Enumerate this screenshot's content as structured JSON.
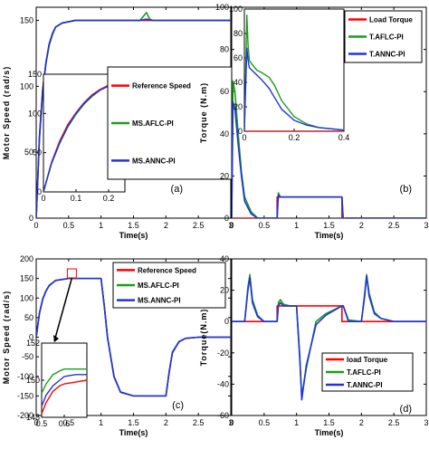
{
  "colors": {
    "reference": "#ff0000",
    "aflc": "#1a9e1a",
    "annc": "#2233dd",
    "axis": "#000000"
  },
  "chart_data": [
    {
      "type": "line",
      "panel_tag": "(a)",
      "xlabel": "Time(s)",
      "ylabel": "Motor Speed (rad/s)",
      "xlim": [
        0,
        3
      ],
      "ylim": [
        0,
        160
      ],
      "xticks": [
        0,
        0.5,
        1,
        1.5,
        2,
        2.5,
        3
      ],
      "xtick_labels": [
        "0",
        "0.5",
        "1",
        "1.5",
        "2",
        "2.5",
        "3"
      ],
      "yticks": [
        0,
        50,
        100,
        150
      ],
      "ytick_labels": [
        "0",
        "50",
        "100",
        "150"
      ],
      "legend_position": "center-right",
      "series": [
        {
          "name": "Reference Speed",
          "color_key": "reference",
          "x": [
            0,
            0.05,
            0.1,
            0.15,
            0.2,
            0.25,
            0.3,
            0.4,
            0.6,
            1,
            1.6,
            1.7,
            1.8,
            2,
            3
          ],
          "y": [
            0,
            62,
            98,
            118,
            132,
            140,
            145,
            148,
            150,
            150,
            150,
            150,
            150,
            150,
            150
          ]
        },
        {
          "name": "MS.AFLC-PI",
          "color_key": "aflc",
          "x": [
            0,
            0.05,
            0.1,
            0.15,
            0.2,
            0.25,
            0.3,
            0.4,
            0.6,
            1,
            1.6,
            1.7,
            1.75,
            1.8,
            2,
            3
          ],
          "y": [
            0,
            60,
            96,
            117,
            131,
            139,
            145,
            148,
            150,
            150,
            150,
            156,
            151,
            150,
            150,
            150
          ]
        },
        {
          "name": "MS.ANNC-PI",
          "color_key": "annc",
          "x": [
            0,
            0.05,
            0.1,
            0.15,
            0.2,
            0.25,
            0.3,
            0.4,
            0.6,
            1,
            1.6,
            1.7,
            1.8,
            2,
            3
          ],
          "y": [
            0,
            61,
            97,
            118,
            132,
            140,
            145,
            148,
            150,
            150,
            150,
            151,
            150,
            150,
            150
          ]
        }
      ],
      "inset": {
        "xlim": [
          0,
          0.25
        ],
        "ylim": [
          0,
          150
        ],
        "xticks": [
          0,
          0.1,
          0.2
        ],
        "xtick_labels": [
          "0",
          "0.1",
          "0.2"
        ],
        "yticks": [
          0,
          50,
          100,
          150
        ],
        "ytick_labels": [
          "0",
          "50",
          "100",
          "150"
        ],
        "series": [
          {
            "color_key": "reference",
            "x": [
              0,
              0.025,
              0.05,
              0.075,
              0.1,
              0.125,
              0.15,
              0.175,
              0.2,
              0.225,
              0.25
            ],
            "y": [
              0,
              38,
              65,
              86,
              101,
              114,
              124,
              131,
              136,
              139,
              141
            ]
          },
          {
            "color_key": "aflc",
            "x": [
              0,
              0.025,
              0.05,
              0.075,
              0.1,
              0.125,
              0.15,
              0.175,
              0.2,
              0.225,
              0.25
            ],
            "y": [
              0,
              36,
              62,
              83,
              99,
              112,
              122,
              130,
              135,
              138,
              140
            ]
          },
          {
            "color_key": "annc",
            "x": [
              0,
              0.025,
              0.05,
              0.075,
              0.1,
              0.125,
              0.15,
              0.175,
              0.2,
              0.225,
              0.25
            ],
            "y": [
              0,
              37,
              63,
              84,
              100,
              113,
              123,
              130,
              135,
              139,
              141
            ]
          }
        ]
      }
    },
    {
      "type": "line",
      "panel_tag": "(b)",
      "xlabel": "Time(s)",
      "ylabel": "Torque (N.m)",
      "xlim": [
        0,
        3
      ],
      "ylim": [
        0,
        100
      ],
      "xticks": [
        0,
        0.5,
        1,
        1.5,
        2,
        2.5,
        3
      ],
      "xtick_labels": [
        "0",
        "0.5",
        "1",
        "1.5",
        "2",
        "2.5",
        "3"
      ],
      "yticks": [
        0,
        20,
        40,
        60,
        80,
        100
      ],
      "ytick_labels": [
        "0",
        "20",
        "40",
        "60",
        "80",
        "100"
      ],
      "legend_position": "top-right",
      "series": [
        {
          "name": "Load Torque",
          "color_key": "reference",
          "x": [
            0,
            0.7,
            0.7,
            1.7,
            1.7,
            3
          ],
          "y": [
            0,
            0,
            10,
            10,
            0,
            0
          ]
        },
        {
          "name": "T.AFLC-PI",
          "color_key": "aflc",
          "x": [
            0,
            0.02,
            0.05,
            0.1,
            0.15,
            0.2,
            0.3,
            0.4,
            0.7,
            0.72,
            0.75,
            1.7,
            1.72,
            1.75,
            3
          ],
          "y": [
            0,
            65,
            60,
            40,
            22,
            10,
            3,
            0,
            0,
            12,
            10,
            10,
            -2,
            0,
            0
          ]
        },
        {
          "name": "T.ANNC-PI",
          "color_key": "annc",
          "x": [
            0,
            0.02,
            0.05,
            0.1,
            0.15,
            0.2,
            0.3,
            0.4,
            0.7,
            0.72,
            0.75,
            1.7,
            1.72,
            1.75,
            3
          ],
          "y": [
            0,
            55,
            52,
            35,
            20,
            8,
            2,
            0,
            0,
            11,
            10,
            10,
            -1,
            0,
            0
          ]
        }
      ],
      "inset": {
        "xlim": [
          0,
          0.4
        ],
        "ylim": [
          0,
          100
        ],
        "xticks": [
          0,
          0.2,
          0.4
        ],
        "xtick_labels": [
          "0",
          "0.2",
          "0.4"
        ],
        "yticks": [
          0,
          20,
          40,
          60,
          80,
          100
        ],
        "ytick_labels": [
          "0",
          "20",
          "40",
          "60",
          "80",
          "100"
        ],
        "series": [
          {
            "color_key": "reference",
            "x": [
              0,
              0.4
            ],
            "y": [
              0,
              0
            ]
          },
          {
            "color_key": "aflc",
            "x": [
              0,
              0.005,
              0.01,
              0.015,
              0.02,
              0.03,
              0.05,
              0.07,
              0.1,
              0.12,
              0.15,
              0.2,
              0.25,
              0.3,
              0.35,
              0.4
            ],
            "y": [
              0,
              45,
              95,
              70,
              58,
              55,
              50,
              48,
              44,
              38,
              25,
              12,
              6,
              3,
              2,
              1
            ]
          },
          {
            "color_key": "annc",
            "x": [
              0,
              0.005,
              0.01,
              0.015,
              0.02,
              0.03,
              0.05,
              0.07,
              0.1,
              0.12,
              0.15,
              0.2,
              0.25,
              0.3,
              0.35,
              0.4
            ],
            "y": [
              0,
              35,
              68,
              58,
              52,
              50,
              46,
              42,
              35,
              28,
              18,
              9,
              5,
              3,
              2,
              1
            ]
          }
        ]
      }
    },
    {
      "type": "line",
      "panel_tag": "(c)",
      "xlabel": "Time(s)",
      "ylabel": "Motor Speed (rad/s)",
      "xlim": [
        0,
        3
      ],
      "ylim": [
        -200,
        200
      ],
      "xticks": [
        0,
        0.5,
        1,
        1.5,
        2,
        2.5,
        3
      ],
      "xtick_labels": [
        "0",
        "0.5",
        "1",
        "1.5",
        "2",
        "2.5",
        "3"
      ],
      "yticks": [
        -200,
        -150,
        -100,
        -50,
        0,
        50,
        100,
        150,
        200
      ],
      "ytick_labels": [
        "-200",
        "-150",
        "-100",
        "-50",
        "0",
        "50",
        "100",
        "150",
        "200"
      ],
      "legend_position": "top-right",
      "series": [
        {
          "name": "Reference Speed",
          "color_key": "reference",
          "x": [
            0,
            0.05,
            0.1,
            0.15,
            0.2,
            0.3,
            0.5,
            1,
            1.05,
            1.1,
            1.2,
            1.3,
            1.5,
            2,
            2.05,
            2.1,
            2.2,
            2.3,
            2.5,
            3
          ],
          "y": [
            0,
            62,
            98,
            118,
            132,
            145,
            150,
            150,
            80,
            0,
            -100,
            -140,
            -150,
            -150,
            -90,
            -40,
            -12,
            -3,
            0,
            0
          ]
        },
        {
          "name": "MS.AFLC-PI",
          "color_key": "aflc",
          "x": [
            0,
            0.05,
            0.1,
            0.15,
            0.2,
            0.3,
            0.5,
            1,
            1.05,
            1.1,
            1.2,
            1.3,
            1.5,
            2,
            2.05,
            2.1,
            2.2,
            2.3,
            2.5,
            3
          ],
          "y": [
            0,
            60,
            96,
            117,
            131,
            145,
            150,
            150,
            78,
            -2,
            -102,
            -141,
            -150,
            -150,
            -88,
            -38,
            -11,
            -3,
            0,
            0
          ]
        },
        {
          "name": "MS.ANNC-PI",
          "color_key": "annc",
          "x": [
            0,
            0.05,
            0.1,
            0.15,
            0.2,
            0.3,
            0.5,
            1,
            1.05,
            1.1,
            1.2,
            1.3,
            1.5,
            2,
            2.05,
            2.1,
            2.2,
            2.3,
            2.5,
            3
          ],
          "y": [
            0,
            61,
            97,
            118,
            132,
            145,
            150,
            150,
            79,
            -1,
            -101,
            -140,
            -150,
            -150,
            -89,
            -39,
            -12,
            -3,
            0,
            0
          ]
        }
      ],
      "inset": {
        "xlim": [
          0.5,
          0.7
        ],
        "ylim": [
          148,
          152
        ],
        "xticks": [
          0.5,
          0.6
        ],
        "xtick_labels": [
          "0.5",
          "0.6"
        ],
        "yticks": [
          148,
          150,
          152
        ],
        "ytick_labels": [
          "148",
          "150",
          "152"
        ],
        "series": [
          {
            "color_key": "reference",
            "x": [
              0.5,
              0.52,
              0.55,
              0.58,
              0.6,
              0.65,
              0.7
            ],
            "y": [
              148.2,
              148.8,
              149.4,
              149.7,
              149.8,
              149.9,
              150
            ]
          },
          {
            "color_key": "aflc",
            "x": [
              0.5,
              0.52,
              0.55,
              0.58,
              0.6,
              0.65,
              0.7
            ],
            "y": [
              149.3,
              149.8,
              150.3,
              150.5,
              150.6,
              150.6,
              150.6
            ]
          },
          {
            "color_key": "annc",
            "x": [
              0.5,
              0.52,
              0.55,
              0.58,
              0.6,
              0.65,
              0.7
            ],
            "y": [
              148.6,
              149.2,
              149.7,
              150.0,
              150.2,
              150.3,
              150.3
            ]
          }
        ]
      }
    },
    {
      "type": "line",
      "panel_tag": "(d)",
      "xlabel": "Time(s)",
      "ylabel": "Torque(N.m)",
      "xlim": [
        0,
        3
      ],
      "ylim": [
        -60,
        40
      ],
      "xticks": [
        0,
        0.5,
        1,
        1.5,
        2,
        2.5,
        3
      ],
      "xtick_labels": [
        "0",
        "0.5",
        "1",
        "1.5",
        "2",
        "2.5",
        "3"
      ],
      "yticks": [
        -60,
        -40,
        -20,
        0,
        20,
        40
      ],
      "ytick_labels": [
        "-60",
        "-40",
        "-20",
        "0",
        "20",
        "40"
      ],
      "legend_position": "bottom-right",
      "series": [
        {
          "name": "load Torque",
          "color_key": "reference",
          "x": [
            0,
            0.7,
            0.7,
            1.7,
            1.7,
            3
          ],
          "y": [
            0,
            0,
            10,
            10,
            0,
            0
          ]
        },
        {
          "name": "T.AFLC-PI",
          "color_key": "aflc",
          "x": [
            0,
            0.2,
            0.25,
            0.28,
            0.32,
            0.4,
            0.5,
            0.55,
            0.6,
            0.7,
            0.72,
            0.75,
            0.8,
            0.9,
            1.0,
            1.05,
            1.08,
            1.15,
            1.3,
            1.45,
            1.7,
            1.72,
            1.8,
            2.0,
            2.05,
            2.08,
            2.12,
            2.2,
            2.3,
            2.5,
            3
          ],
          "y": [
            0,
            0,
            22,
            30,
            14,
            4,
            0,
            0,
            0,
            0,
            12,
            14,
            11,
            10,
            10,
            -25,
            -48,
            -30,
            0,
            5,
            10,
            10,
            1,
            0,
            18,
            30,
            18,
            6,
            2,
            0,
            0
          ]
        },
        {
          "name": "T.ANNC-PI",
          "color_key": "annc",
          "x": [
            0,
            0.2,
            0.25,
            0.28,
            0.32,
            0.4,
            0.5,
            0.55,
            0.6,
            0.7,
            0.72,
            0.75,
            0.8,
            0.9,
            1.0,
            1.05,
            1.08,
            1.15,
            1.3,
            1.45,
            1.7,
            1.72,
            1.8,
            2.0,
            2.05,
            2.08,
            2.12,
            2.2,
            2.3,
            2.5,
            3
          ],
          "y": [
            0,
            0,
            20,
            28,
            12,
            3,
            0,
            0,
            0,
            0,
            10,
            12,
            10,
            10,
            10,
            -22,
            -50,
            -28,
            -2,
            4,
            10,
            10,
            0,
            0,
            16,
            29,
            16,
            5,
            2,
            0,
            0
          ]
        }
      ]
    }
  ]
}
